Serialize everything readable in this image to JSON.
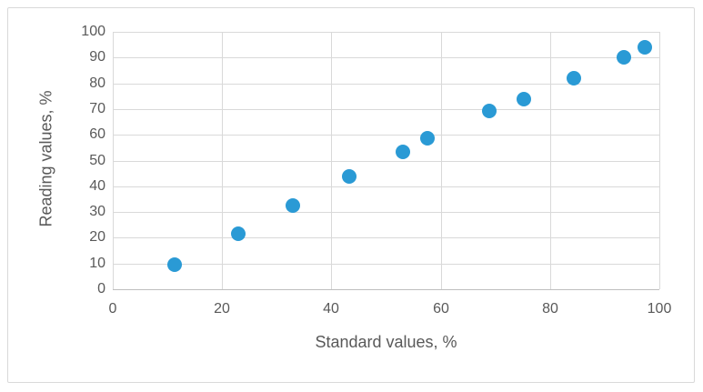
{
  "figure": {
    "background_color": "#ffffff",
    "frame_border_color": "#d9d9d9"
  },
  "chart_data": {
    "type": "scatter",
    "title": "",
    "xlabel": "Standard values, %",
    "ylabel": "Reading values, %",
    "xlim": [
      0,
      100
    ],
    "ylim": [
      0,
      100
    ],
    "x_ticks": [
      0,
      20,
      40,
      60,
      80,
      100
    ],
    "y_ticks": [
      0,
      10,
      20,
      30,
      40,
      50,
      60,
      70,
      80,
      90,
      100
    ],
    "grid": true,
    "legend": false,
    "series": [
      {
        "name": "readings-vs-standards",
        "marker": "circle",
        "color": "#2a9ad5",
        "points": [
          {
            "x": 11.3,
            "y": 9.7
          },
          {
            "x": 22.9,
            "y": 21.6
          },
          {
            "x": 33.0,
            "y": 32.6
          },
          {
            "x": 43.2,
            "y": 43.8
          },
          {
            "x": 53.0,
            "y": 53.4
          },
          {
            "x": 57.6,
            "y": 58.6
          },
          {
            "x": 68.9,
            "y": 69.1
          },
          {
            "x": 75.2,
            "y": 73.9
          },
          {
            "x": 84.3,
            "y": 81.9
          },
          {
            "x": 93.5,
            "y": 90.1
          },
          {
            "x": 97.3,
            "y": 94.0
          }
        ]
      }
    ],
    "colors": {
      "gridline": "#d9d9d9",
      "axis_line": "#bfbfbf",
      "tick_label": "#595959",
      "axis_title": "#595959"
    }
  }
}
